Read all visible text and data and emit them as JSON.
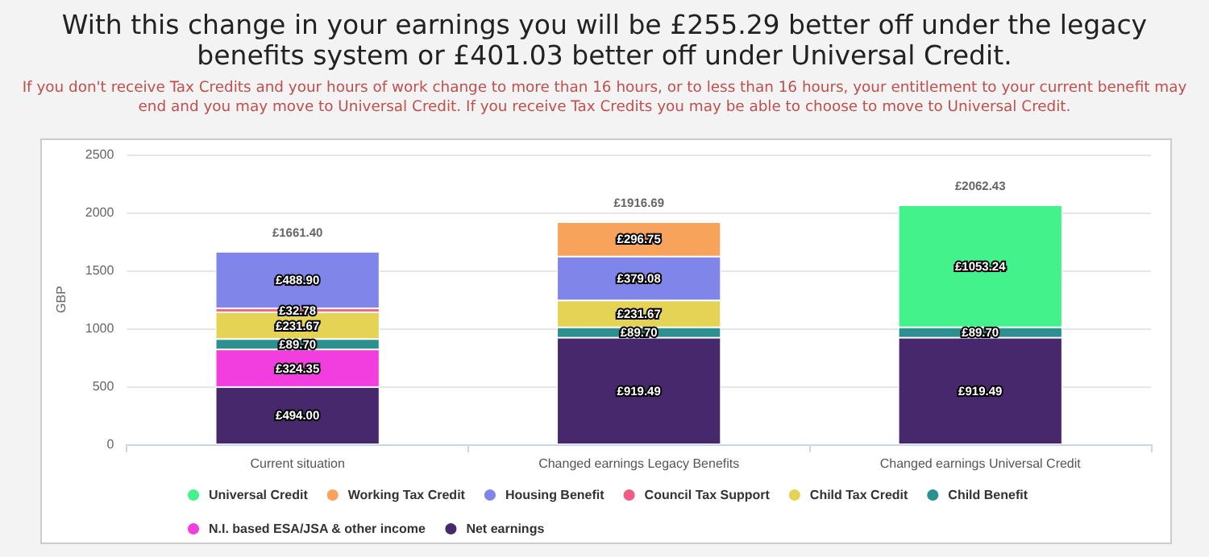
{
  "chart_data": {
    "type": "bar",
    "title": "With this change in your earnings you will be £255.29 better off under the legacy benefits system or £401.03 better off under Universal Credit.",
    "subtitle": "If you don't receive Tax Credits and your hours of work change to more than 16 hours, or to less than 16 hours, your entitlement to your current benefit may end and you may move to Universal Credit. If you receive Tax Credits you may be able to choose to move to Universal Credit.",
    "ylabel": "GBP",
    "categories": [
      "Current situation",
      "Changed earnings Legacy Benefits",
      "Changed earnings Universal Credit"
    ],
    "stacked": true,
    "ylim": [
      0,
      2500
    ],
    "yticks": [
      0,
      500,
      1000,
      1500,
      2000,
      2500
    ],
    "grid": "y",
    "legend": "bottom",
    "series": [
      {
        "name": "Net earnings",
        "color": "#47286c",
        "values": [
          494.0,
          919.49,
          919.49
        ],
        "value_labels": [
          "£494.00",
          "£919.49",
          "£919.49"
        ]
      },
      {
        "name": "N.I. based ESA/JSA & other income",
        "color": "#f23ddf",
        "values": [
          324.35,
          null,
          null
        ],
        "value_labels": [
          "£324.35",
          null,
          null
        ]
      },
      {
        "name": "Child Benefit",
        "color": "#2b908f",
        "values": [
          89.7,
          89.7,
          89.7
        ],
        "value_labels": [
          "£89.70",
          "£89.70",
          "£89.70"
        ]
      },
      {
        "name": "Child Tax Credit",
        "color": "#e4d354",
        "values": [
          231.67,
          231.67,
          null
        ],
        "value_labels": [
          "£231.67",
          "£231.67",
          null
        ]
      },
      {
        "name": "Council Tax Support",
        "color": "#f15c80",
        "values": [
          32.78,
          null,
          null
        ],
        "value_labels": [
          "£32.78",
          null,
          null
        ]
      },
      {
        "name": "Housing Benefit",
        "color": "#8085e9",
        "values": [
          488.9,
          379.08,
          null
        ],
        "value_labels": [
          "£488.90",
          "£379.08",
          null
        ]
      },
      {
        "name": "Working Tax Credit",
        "color": "#f7a35c",
        "values": [
          null,
          296.75,
          null
        ],
        "value_labels": [
          null,
          "£296.75",
          null
        ]
      },
      {
        "name": "Universal Credit",
        "color": "#44f28c",
        "values": [
          null,
          null,
          1053.24
        ],
        "value_labels": [
          null,
          null,
          "£1053.24"
        ]
      }
    ],
    "totals": [
      "£1661.40",
      "£1916.69",
      "£2062.43"
    ]
  }
}
